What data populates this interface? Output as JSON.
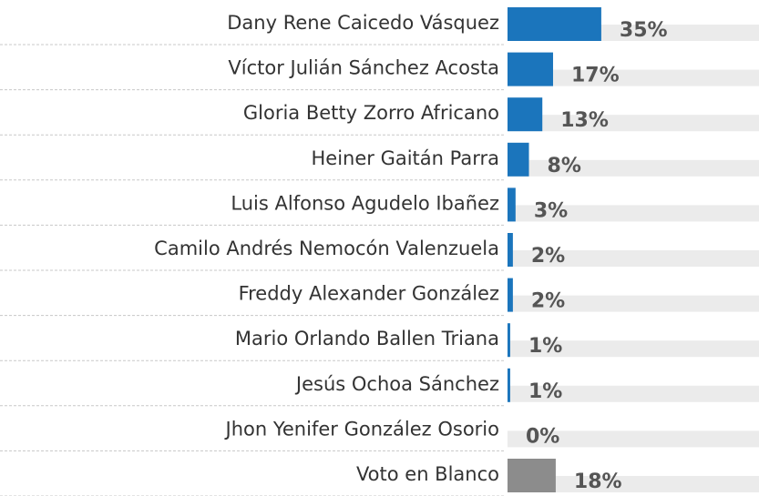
{
  "chart_data": {
    "type": "bar",
    "orientation": "horizontal",
    "categories": [
      "Dany Rene Caicedo Vásquez",
      "Víctor Julián Sánchez Acosta",
      "Gloria Betty Zorro Africano",
      "Heiner Gaitán Parra",
      "Luis Alfonso Agudelo Ibañez",
      "Camilo Andrés Nemocón Valenzuela",
      "Freddy Alexander González",
      "Mario Orlando Ballen Triana",
      "Jesús Ochoa Sánchez",
      "Jhon Yenifer González Osorio",
      "Voto en Blanco"
    ],
    "values": [
      35,
      17,
      13,
      8,
      3,
      2,
      2,
      1,
      1,
      0,
      18
    ],
    "value_labels": [
      "35%",
      "17%",
      "13%",
      "8%",
      "3%",
      "2%",
      "2%",
      "1%",
      "1%",
      "0%",
      "18%"
    ],
    "colors": [
      "#1b75bc",
      "#1b75bc",
      "#1b75bc",
      "#1b75bc",
      "#1b75bc",
      "#1b75bc",
      "#1b75bc",
      "#1b75bc",
      "#1b75bc",
      "#1b75bc",
      "#8c8c8c"
    ]
  }
}
